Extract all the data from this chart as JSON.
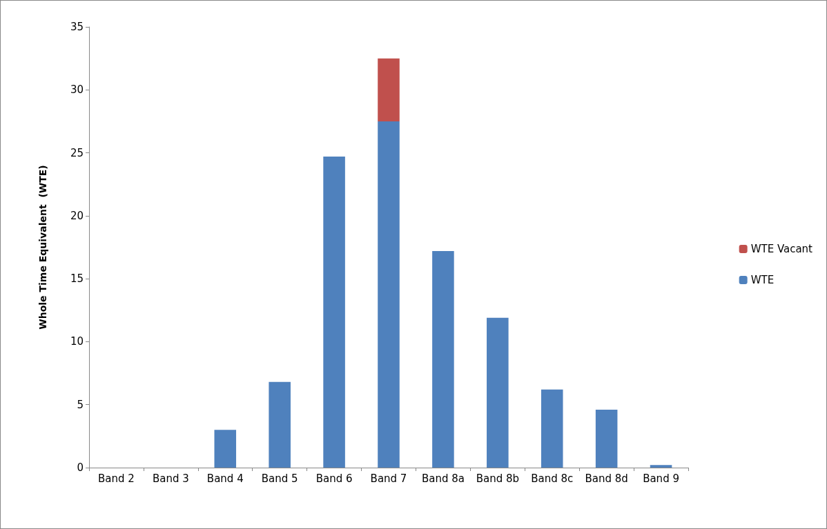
{
  "chart_data": {
    "type": "bar",
    "ylabel": "Whole Time Equivalent  (WTE)",
    "categories": [
      "Band 2",
      "Band 3",
      "Band 4",
      "Band 5",
      "Band 6",
      "Band 7",
      "Band 8a",
      "Band 8b",
      "Band 8c",
      "Band 8d",
      "Band 9"
    ],
    "series": [
      {
        "name": "WTE",
        "color": "#4f81bd",
        "values": [
          0,
          0,
          3,
          6.8,
          24.7,
          27.5,
          17.2,
          11.9,
          6.2,
          4.6,
          0.2
        ]
      },
      {
        "name": "WTE Vacant",
        "color": "#c0504d",
        "values": [
          0,
          0,
          0,
          0,
          0,
          5,
          0,
          0,
          0,
          0,
          0
        ]
      }
    ],
    "stacked": true,
    "ylim": [
      0,
      35
    ],
    "yticks": [
      0,
      5,
      10,
      15,
      20,
      25,
      30,
      35
    ],
    "grid": false,
    "legend": "right"
  }
}
